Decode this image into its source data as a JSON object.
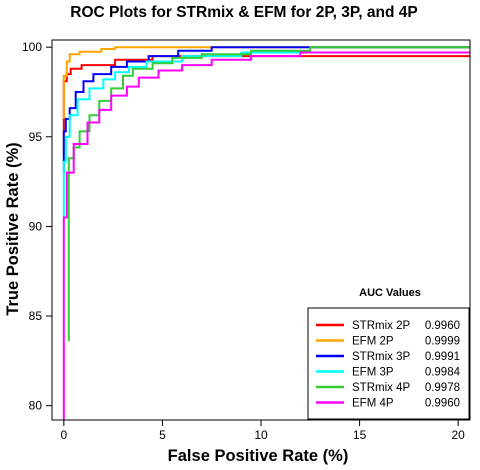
{
  "chart_data": {
    "type": "line",
    "title": "ROC Plots for STRmix & EFM for 2P, 3P, and 4P",
    "xlabel": "False Positive Rate (%)",
    "ylabel": "True Positive Rate (%)",
    "xlim": [
      -0.6,
      20.6
    ],
    "ylim": [
      79.2,
      100.4
    ],
    "x_ticks": [
      0,
      5,
      10,
      15,
      20
    ],
    "y_ticks": [
      80,
      85,
      90,
      95,
      100
    ],
    "grid": false,
    "legend": {
      "title": "AUC Values",
      "placement": "bottom-right"
    },
    "series": [
      {
        "name": "STRmix 2P",
        "auc": "0.9960",
        "color": "#ff0000",
        "points": [
          [
            0,
            94
          ],
          [
            0,
            98.1
          ],
          [
            0.15,
            98.1
          ],
          [
            0.15,
            98.5
          ],
          [
            0.35,
            98.5
          ],
          [
            0.35,
            98.8
          ],
          [
            0.9,
            98.8
          ],
          [
            0.9,
            99.0
          ],
          [
            2.6,
            99.0
          ],
          [
            2.6,
            99.3
          ],
          [
            4.5,
            99.3
          ],
          [
            4.5,
            99.5
          ],
          [
            20.6,
            99.5
          ]
        ]
      },
      {
        "name": "EFM 2P",
        "auc": "0.9999",
        "color": "#ffa500",
        "points": [
          [
            0,
            96
          ],
          [
            0,
            98.4
          ],
          [
            0.15,
            98.4
          ],
          [
            0.15,
            99.2
          ],
          [
            0.3,
            99.2
          ],
          [
            0.3,
            99.6
          ],
          [
            0.8,
            99.6
          ],
          [
            0.8,
            99.75
          ],
          [
            1.9,
            99.75
          ],
          [
            1.9,
            99.9
          ],
          [
            2.6,
            99.9
          ],
          [
            2.6,
            100.0
          ],
          [
            20.6,
            100.0
          ]
        ]
      },
      {
        "name": "STRmix 3P",
        "auc": "0.9991",
        "color": "#0000ff",
        "points": [
          [
            0,
            93
          ],
          [
            0,
            95.3
          ],
          [
            0.1,
            95.3
          ],
          [
            0.1,
            96.0
          ],
          [
            0.3,
            96.0
          ],
          [
            0.3,
            96.6
          ],
          [
            0.6,
            96.6
          ],
          [
            0.6,
            97.5
          ],
          [
            1.0,
            97.5
          ],
          [
            1.0,
            98.1
          ],
          [
            1.5,
            98.1
          ],
          [
            1.5,
            98.5
          ],
          [
            2.4,
            98.5
          ],
          [
            2.4,
            98.9
          ],
          [
            3.2,
            98.9
          ],
          [
            3.2,
            99.2
          ],
          [
            4.3,
            99.2
          ],
          [
            4.3,
            99.5
          ],
          [
            5.8,
            99.5
          ],
          [
            5.8,
            99.8
          ],
          [
            7.5,
            99.8
          ],
          [
            7.5,
            100.0
          ],
          [
            20.6,
            100.0
          ]
        ]
      },
      {
        "name": "EFM 3P",
        "auc": "0.9984",
        "color": "#00ffff",
        "points": [
          [
            0,
            90.5
          ],
          [
            0,
            93.6
          ],
          [
            0.1,
            93.6
          ],
          [
            0.1,
            95.0
          ],
          [
            0.3,
            95.0
          ],
          [
            0.3,
            96.2
          ],
          [
            0.7,
            96.2
          ],
          [
            0.7,
            97.1
          ],
          [
            1.3,
            97.1
          ],
          [
            1.3,
            97.7
          ],
          [
            2.0,
            97.7
          ],
          [
            2.0,
            98.2
          ],
          [
            2.6,
            98.2
          ],
          [
            2.6,
            98.6
          ],
          [
            3.3,
            98.6
          ],
          [
            3.3,
            98.9
          ],
          [
            4.2,
            98.9
          ],
          [
            4.2,
            99.2
          ],
          [
            6.0,
            99.2
          ],
          [
            6.0,
            99.5
          ],
          [
            9.0,
            99.5
          ],
          [
            9.0,
            99.7
          ],
          [
            20.6,
            99.7
          ]
        ]
      },
      {
        "name": "STRmix 4P",
        "auc": "0.9978",
        "color": "#33cc33",
        "points": [
          [
            0.25,
            83.6
          ],
          [
            0.25,
            93.8
          ],
          [
            0.5,
            93.8
          ],
          [
            0.5,
            94.4
          ],
          [
            0.8,
            94.4
          ],
          [
            0.8,
            95.3
          ],
          [
            1.3,
            95.3
          ],
          [
            1.3,
            96.2
          ],
          [
            1.8,
            96.2
          ],
          [
            1.8,
            97.0
          ],
          [
            2.4,
            97.0
          ],
          [
            2.4,
            97.7
          ],
          [
            3.0,
            97.7
          ],
          [
            3.0,
            98.4
          ],
          [
            3.5,
            98.4
          ],
          [
            3.5,
            98.8
          ],
          [
            4.5,
            98.8
          ],
          [
            4.5,
            99.1
          ],
          [
            5.5,
            99.1
          ],
          [
            5.5,
            99.4
          ],
          [
            7.0,
            99.4
          ],
          [
            7.0,
            99.6
          ],
          [
            9.5,
            99.6
          ],
          [
            9.5,
            99.8
          ],
          [
            12.5,
            99.8
          ],
          [
            12.5,
            100.0
          ],
          [
            20.6,
            100.0
          ]
        ]
      },
      {
        "name": "EFM 4P",
        "auc": "0.9960",
        "color": "#ff00ff",
        "points": [
          [
            0,
            79.2
          ],
          [
            0,
            90.5
          ],
          [
            0.15,
            90.5
          ],
          [
            0.15,
            93.0
          ],
          [
            0.5,
            93.0
          ],
          [
            0.5,
            94.6
          ],
          [
            1.2,
            94.6
          ],
          [
            1.2,
            95.8
          ],
          [
            1.8,
            95.8
          ],
          [
            1.8,
            96.5
          ],
          [
            2.4,
            96.5
          ],
          [
            2.4,
            97.3
          ],
          [
            3.2,
            97.3
          ],
          [
            3.2,
            97.8
          ],
          [
            3.8,
            97.8
          ],
          [
            3.8,
            98.3
          ],
          [
            4.8,
            98.3
          ],
          [
            4.8,
            98.7
          ],
          [
            6.0,
            98.7
          ],
          [
            6.0,
            99.0
          ],
          [
            7.5,
            99.0
          ],
          [
            7.5,
            99.3
          ],
          [
            9.5,
            99.3
          ],
          [
            9.5,
            99.5
          ],
          [
            12.0,
            99.5
          ],
          [
            12.0,
            99.7
          ],
          [
            20.6,
            99.7
          ]
        ]
      }
    ]
  }
}
